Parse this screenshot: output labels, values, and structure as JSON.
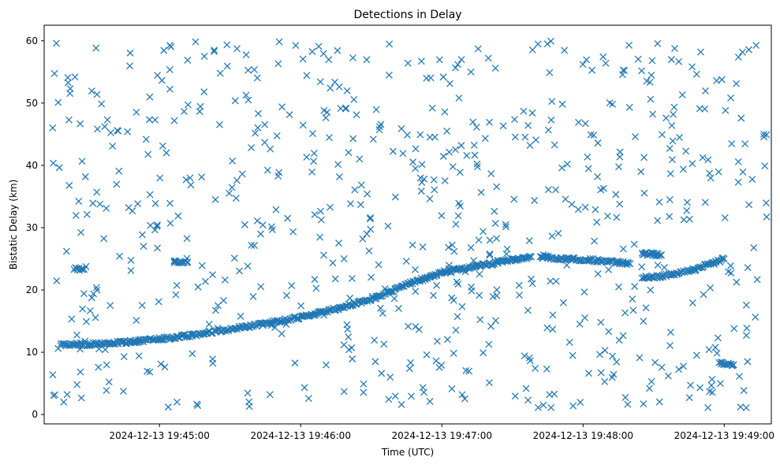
{
  "chart_data": {
    "type": "scatter",
    "title": "Detections in Delay",
    "xlabel": "Time (UTC)",
    "ylabel": "Bistatic Delay (km)",
    "marker": "x",
    "color": "#1f77b4",
    "grid": false,
    "x_axis": {
      "type": "time",
      "range": [
        "2024-12-13 19:44:11",
        "2024-12-13 19:49:20"
      ],
      "ticks": [
        "2024-12-13 19:45:00",
        "2024-12-13 19:46:00",
        "2024-12-13 19:47:00",
        "2024-12-13 19:48:00",
        "2024-12-13 19:49:00"
      ]
    },
    "y_axis": {
      "range": [
        -1.5,
        62.5
      ],
      "ticks": [
        0,
        10,
        20,
        30,
        40,
        50,
        60
      ]
    },
    "series": [
      {
        "kind": "track",
        "x": [
          "2024-12-13 19:44:18",
          "2024-12-13 19:44:30",
          "2024-12-13 19:44:45",
          "2024-12-13 19:45:00",
          "2024-12-13 19:45:15",
          "2024-12-13 19:45:30",
          "2024-12-13 19:45:45",
          "2024-12-13 19:46:00",
          "2024-12-13 19:46:15",
          "2024-12-13 19:46:30",
          "2024-12-13 19:46:45",
          "2024-12-13 19:47:00",
          "2024-12-13 19:47:15",
          "2024-12-13 19:47:30",
          "2024-12-13 19:47:38"
        ],
        "y": [
          11.2,
          11.3,
          11.6,
          12.1,
          12.8,
          13.7,
          14.6,
          15.6,
          17.0,
          18.5,
          20.8,
          22.8,
          23.8,
          24.8,
          25.3
        ]
      },
      {
        "kind": "track",
        "x": [
          "2024-12-13 19:47:42",
          "2024-12-13 19:47:50",
          "2024-12-13 19:48:00",
          "2024-12-13 19:48:10",
          "2024-12-13 19:48:20"
        ],
        "y": [
          25.5,
          25.0,
          24.9,
          24.6,
          24.2
        ]
      },
      {
        "kind": "track",
        "x": [
          "2024-12-13 19:48:25",
          "2024-12-13 19:48:40",
          "2024-12-13 19:48:55",
          "2024-12-13 19:49:00"
        ],
        "y": [
          21.8,
          22.6,
          24.2,
          25.0
        ]
      },
      {
        "kind": "track",
        "x": [
          "2024-12-13 19:48:25",
          "2024-12-13 19:48:33"
        ],
        "y": [
          25.9,
          25.6
        ]
      },
      {
        "kind": "track",
        "x": [
          "2024-12-13 19:44:24",
          "2024-12-13 19:44:28"
        ],
        "y": [
          23.5,
          23.3
        ]
      },
      {
        "kind": "track",
        "x": [
          "2024-12-13 19:45:06",
          "2024-12-13 19:45:12"
        ],
        "y": [
          24.6,
          24.5
        ]
      },
      {
        "kind": "track",
        "x": [
          "2024-12-13 19:48:58",
          "2024-12-13 19:49:04"
        ],
        "y": [
          8.2,
          8.0
        ]
      },
      {
        "kind": "clutter",
        "time_range": [
          "2024-12-13 19:44:14",
          "2024-12-13 19:49:20"
        ],
        "delay_range": [
          1,
          60
        ],
        "count": 700
      }
    ]
  }
}
